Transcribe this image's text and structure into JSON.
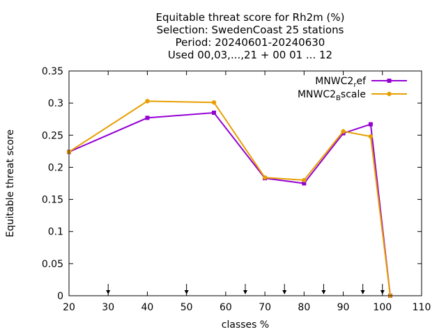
{
  "chart_data": {
    "type": "line",
    "title_lines": [
      "Equitable threat score  for Rh2m (%)",
      "Selection: SwedenCoast     25 stations",
      "Period: 20240601-20240630",
      "Used 00,03,...,21 + 00 01 ... 12"
    ],
    "xlabel": "classes %",
    "ylabel": "Equitable threat score",
    "xlim": [
      20,
      110
    ],
    "ylim": [
      0,
      0.35
    ],
    "x_ticks": [
      "20",
      "30",
      "40",
      "50",
      "60",
      "70",
      "80",
      "90",
      "100",
      "110"
    ],
    "y_ticks": [
      "0",
      "0.05",
      "0.1",
      "0.15",
      "0.2",
      "0.25",
      "0.3",
      "0.35"
    ],
    "grid": false,
    "legend_position": "top-right",
    "series": [
      {
        "name": "MNWC2_ref",
        "legend_main": "MNWC2",
        "legend_sub": "r",
        "legend_tail": "ef",
        "color": "#9400d3",
        "marker": "square",
        "x": [
          20,
          40,
          57,
          70,
          80,
          90,
          97,
          102
        ],
        "y": [
          0.224,
          0.277,
          0.285,
          0.183,
          0.175,
          0.253,
          0.267,
          0.0
        ]
      },
      {
        "name": "MNWC2_Bscale",
        "legend_main": "MNWC2",
        "legend_sub": "B",
        "legend_tail": "scale",
        "color": "#e69f00",
        "marker": "circle",
        "x": [
          20,
          40,
          57,
          70,
          80,
          90,
          97,
          102
        ],
        "y": [
          0.224,
          0.303,
          0.301,
          0.184,
          0.18,
          0.256,
          0.248,
          0.0
        ]
      }
    ],
    "threshold_arrows_x": [
      30,
      50,
      65,
      75,
      85,
      95,
      100
    ]
  }
}
